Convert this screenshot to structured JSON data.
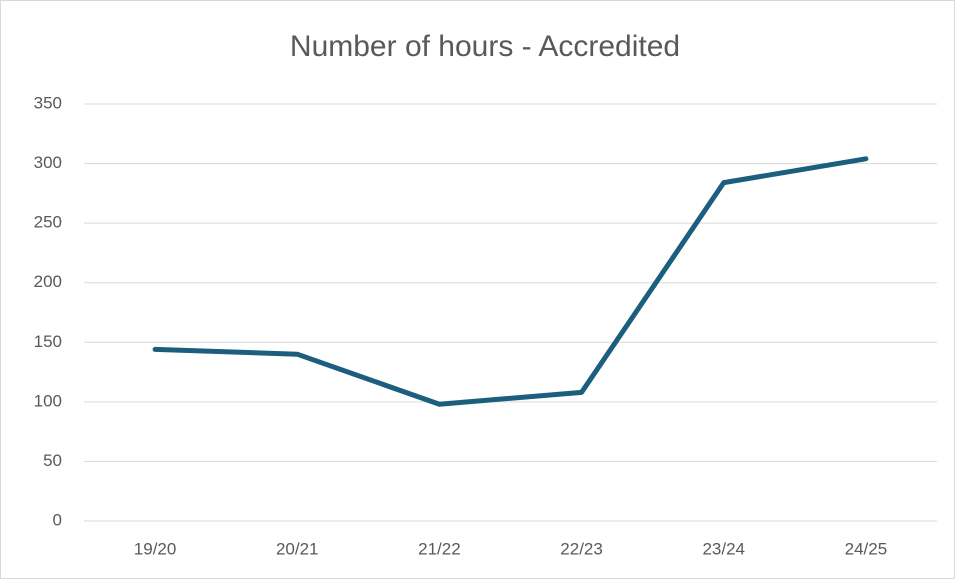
{
  "chart_data": {
    "type": "line",
    "title": "Number of hours - Accredited",
    "categories": [
      "19/20",
      "20/21",
      "21/22",
      "22/23",
      "23/24",
      "24/25"
    ],
    "series": [
      {
        "name": "Accredited",
        "color": "#1b5e7e",
        "values": [
          144,
          140,
          98,
          108,
          284,
          304
        ]
      }
    ],
    "ylim": [
      0,
      350
    ],
    "yticks": [
      0,
      50,
      100,
      150,
      200,
      250,
      300,
      350
    ],
    "grid": true
  }
}
